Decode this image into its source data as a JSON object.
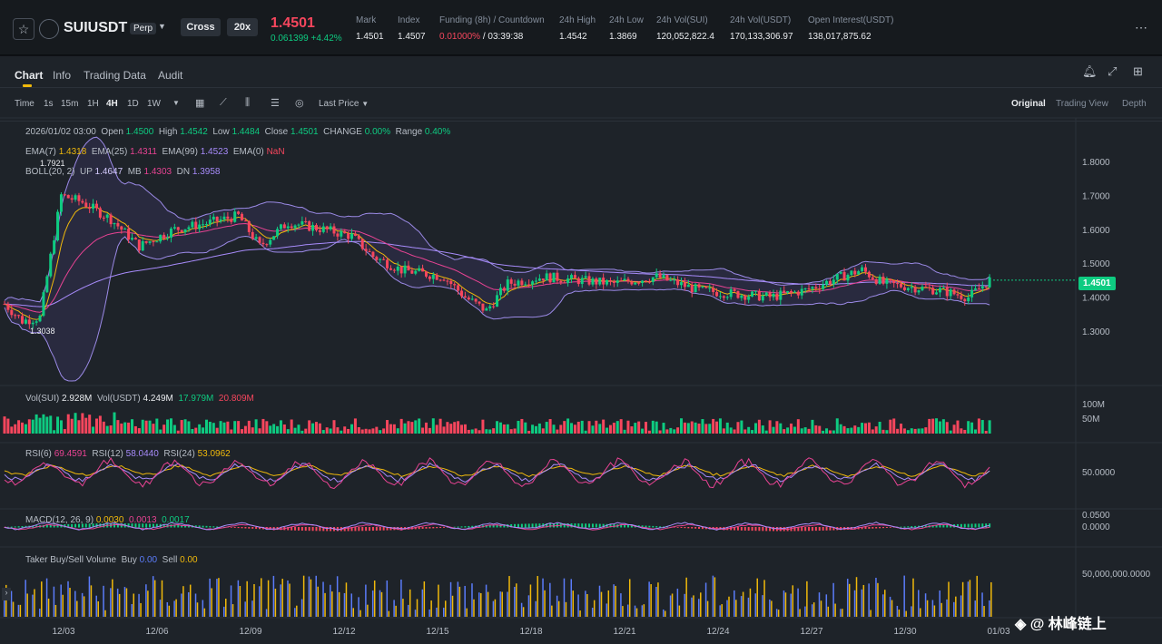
{
  "header": {
    "symbol": "SUIUSDT",
    "type_badge": "Perp",
    "margin_mode": "Cross",
    "leverage": "20x",
    "last_price": "1.4501",
    "change_abs": "0.061399",
    "change_pct": "+4.42%",
    "stats": [
      {
        "label": "Mark",
        "value": "1.4501"
      },
      {
        "label": "Index",
        "value": "1.4507"
      },
      {
        "label": "Funding (8h) / Countdown",
        "value_a": "0.01000%",
        "value_b": "03:39:38"
      },
      {
        "label": "24h High",
        "value": "1.4542"
      },
      {
        "label": "24h Low",
        "value": "1.3869"
      },
      {
        "label": "24h Vol(SUI)",
        "value": "120,052,822.4"
      },
      {
        "label": "24h Vol(USDT)",
        "value": "170,133,306.97"
      },
      {
        "label": "Open Interest(USDT)",
        "value": "138,017,875.62"
      }
    ]
  },
  "tabs": [
    "Chart",
    "Info",
    "Trading Data",
    "Audit"
  ],
  "toolbar": {
    "timeframes": [
      "Time",
      "1s",
      "15m",
      "1H",
      "4H",
      "1D",
      "1W"
    ],
    "active_timeframe": "4H",
    "price_type": "Last Price",
    "views": [
      "Original",
      "Trading View",
      "Depth"
    ]
  },
  "legend": {
    "date": "2026/01/02 03:00",
    "open_l": "Open",
    "open": "1.4500",
    "high_l": "High",
    "high": "1.4542",
    "low_l": "Low",
    "low": "1.4484",
    "close_l": "Close",
    "close": "1.4501",
    "change_l": "CHANGE",
    "change": "0.00%",
    "range_l": "Range",
    "range": "0.40%",
    "ema7_l": "EMA(7)",
    "ema7": "1.4318",
    "ema25_l": "EMA(25)",
    "ema25": "1.4311",
    "ema99_l": "EMA(99)",
    "ema99": "1.4523",
    "ema0_l": "EMA(0)",
    "ema0": "NaN",
    "boll_l": "BOLL(20, 2)",
    "up_l": "UP",
    "up": "1.4647",
    "mb_l": "MB",
    "mb": "1.4303",
    "dn_l": "DN",
    "dn": "1.3958"
  },
  "price_axis": [
    "1.8000",
    "1.7000",
    "1.6000",
    "1.5000",
    "1.4000",
    "1.3000"
  ],
  "current_price_tag": "1.4501",
  "high_marker": "1.7921",
  "low_marker": "1.3038",
  "volume": {
    "l1": "Vol(SUI)",
    "v1": "2.928M",
    "l2": "Vol(USDT)",
    "v2": "4.249M",
    "v3": "17.979M",
    "v4": "20.809M",
    "axis": [
      "100M",
      "50M"
    ]
  },
  "rsi": {
    "l1": "RSI(6)",
    "v1": "69.4591",
    "l2": "RSI(12)",
    "v2": "58.0440",
    "l3": "RSI(24)",
    "v3": "53.0962",
    "axis": [
      "50.0000"
    ]
  },
  "macd": {
    "label": "MACD(12, 26, 9)",
    "v1": "0.0030",
    "v2": "0.0013",
    "v3": "0.0017",
    "axis": [
      "0.0500",
      "0.0000"
    ]
  },
  "taker": {
    "label": "Taker Buy/Sell Volume",
    "buy_l": "Buy",
    "buy": "0.00",
    "sell_l": "Sell",
    "sell": "0.00",
    "axis": [
      "50,000,000.0000"
    ]
  },
  "x_axis": [
    "12/03",
    "12/06",
    "12/09",
    "12/12",
    "12/15",
    "12/18",
    "12/21",
    "12/24",
    "12/27",
    "12/30",
    "01/03"
  ],
  "watermark": "◈ @ 林峰链上",
  "colors": {
    "up": "#0ecb81",
    "down": "#f6465d",
    "accent": "#f0b90b",
    "ema7": "#f0b90b",
    "ema25": "#e84393",
    "ema99": "#a78bfa",
    "boll": "#9b8ae6"
  }
}
